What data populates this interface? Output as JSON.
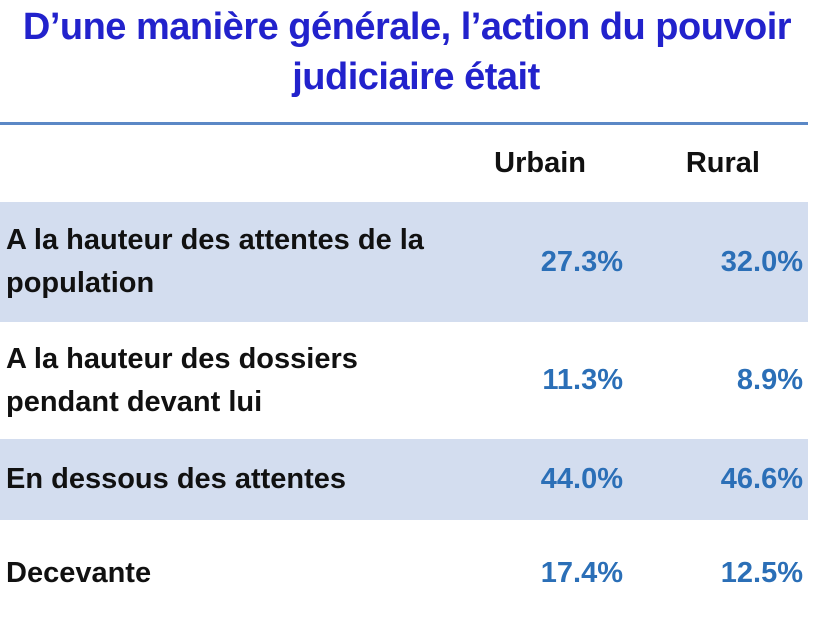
{
  "chart_data": {
    "type": "table",
    "title_line1": "D’une manière générale, l’action du pouvoir",
    "title_line2": "judiciaire était",
    "columns": [
      "Urbain",
      "Rural"
    ],
    "rows": [
      {
        "label": "A la hauteur des attentes de la population",
        "urbain": "27.3%",
        "rural": "32.0%"
      },
      {
        "label": "A la hauteur des dossiers pendant devant lui",
        "urbain": "11.3%",
        "rural": "8.9%"
      },
      {
        "label": "En dessous des attentes",
        "urbain": "44.0%",
        "rural": "46.6%"
      },
      {
        "label": "Decevante",
        "urbain": "17.4%",
        "rural": "12.5%"
      }
    ],
    "values": {
      "Urbain": [
        27.3,
        11.3,
        44.0,
        17.4
      ],
      "Rural": [
        32.0,
        8.9,
        46.6,
        12.5
      ]
    }
  },
  "colors": {
    "title": "#2222cc",
    "value_text": "#2b6fb7",
    "band": "#d3ddef",
    "rule": "#5b88c6"
  }
}
